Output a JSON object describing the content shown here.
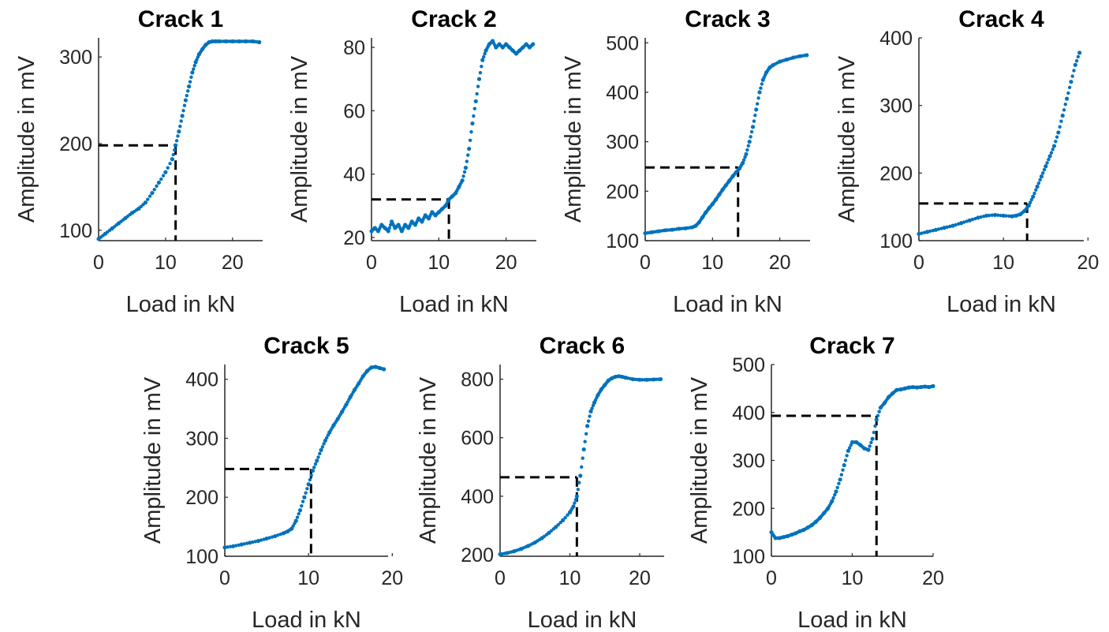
{
  "chart_data": [
    {
      "type": "scatter",
      "title": "Crack 1",
      "xlabel": "Load in kN",
      "ylabel": "Amplitude in mV",
      "xlim": [
        0,
        24.5
      ],
      "ylim": [
        88,
        322
      ],
      "xticks": [
        0,
        10,
        20
      ],
      "yticks": [
        100,
        200,
        300
      ],
      "grid": false,
      "marker_color": "#0072BD",
      "x": [
        0,
        1,
        2,
        3,
        4,
        5,
        6,
        7,
        8,
        9,
        10,
        11,
        11.5,
        12,
        12.5,
        13,
        13.5,
        14,
        14.5,
        15,
        15.5,
        16,
        16.5,
        17,
        17.5,
        18,
        19,
        20,
        21,
        22,
        23,
        24
      ],
      "y": [
        90,
        96,
        102,
        108,
        114,
        120,
        125,
        132,
        143,
        155,
        167,
        182,
        198,
        214,
        232,
        250,
        266,
        282,
        294,
        303,
        309,
        314,
        317,
        318,
        318,
        318,
        318,
        318,
        318,
        318,
        318,
        317
      ],
      "threshold": {
        "x": 11.5,
        "y": 198
      }
    },
    {
      "type": "scatter",
      "title": "Crack 2",
      "xlabel": "Load in kN",
      "ylabel": "Amplitude in mV",
      "xlim": [
        0,
        24.5
      ],
      "ylim": [
        19,
        83
      ],
      "xticks": [
        0,
        10,
        20
      ],
      "yticks": [
        20,
        40,
        60,
        80
      ],
      "grid": false,
      "marker_color": "#0072BD",
      "x": [
        0,
        0.5,
        1,
        1.5,
        2,
        2.5,
        3,
        3.5,
        4,
        4.5,
        5,
        5.5,
        6,
        6.5,
        7,
        7.5,
        8,
        8.5,
        9,
        9.5,
        10,
        10.5,
        11,
        11.5,
        12,
        12.5,
        13,
        13.5,
        14,
        14.5,
        15,
        15.5,
        16,
        16.5,
        17,
        17.5,
        18,
        18.5,
        19,
        19.5,
        20,
        20.5,
        21,
        21.5,
        22,
        22.5,
        23,
        23.5,
        24
      ],
      "y": [
        22,
        23,
        22,
        24,
        23,
        22,
        25,
        23,
        24,
        22,
        24,
        23,
        25,
        24,
        26,
        25,
        27,
        26,
        28,
        27,
        28,
        29,
        30,
        32,
        33,
        34,
        36,
        38,
        42,
        48,
        56,
        63,
        70,
        76,
        79,
        81,
        82,
        80,
        81,
        80,
        81,
        80,
        79,
        78,
        79,
        80,
        81,
        80,
        81
      ],
      "threshold": {
        "x": 11.5,
        "y": 32
      }
    },
    {
      "type": "scatter",
      "title": "Crack 3",
      "xlabel": "Load in kN",
      "ylabel": "Amplitude in mV",
      "xlim": [
        0,
        24.5
      ],
      "ylim": [
        100,
        510
      ],
      "xticks": [
        0,
        10,
        20
      ],
      "yticks": [
        100,
        200,
        300,
        400,
        500
      ],
      "grid": false,
      "marker_color": "#0072BD",
      "x": [
        0,
        1,
        2,
        3,
        4,
        5,
        6,
        7,
        7.5,
        8,
        8.5,
        9,
        9.5,
        10,
        10.5,
        11,
        11.5,
        12,
        12.5,
        13,
        13.5,
        14,
        14.5,
        15,
        15.5,
        16,
        16.5,
        17,
        17.5,
        18,
        18.5,
        19,
        20,
        21,
        22,
        23,
        24
      ],
      "y": [
        115,
        117,
        119,
        121,
        122,
        124,
        125,
        127,
        130,
        137,
        147,
        157,
        166,
        174,
        183,
        193,
        203,
        212,
        221,
        230,
        238,
        246,
        257,
        275,
        300,
        330,
        365,
        400,
        425,
        440,
        450,
        455,
        462,
        466,
        470,
        473,
        475
      ],
      "threshold": {
        "x": 13.8,
        "y": 248
      }
    },
    {
      "type": "scatter",
      "title": "Crack 4",
      "xlabel": "Load in kN",
      "ylabel": "Amplitude in mV",
      "xlim": [
        0,
        19.5
      ],
      "ylim": [
        100,
        400
      ],
      "xticks": [
        0,
        10,
        20
      ],
      "yticks": [
        100,
        200,
        300,
        400
      ],
      "grid": false,
      "marker_color": "#0072BD",
      "x": [
        0,
        1,
        2,
        3,
        4,
        5,
        6,
        7,
        8,
        9,
        10,
        11,
        11.5,
        12,
        12.5,
        13,
        13.5,
        14,
        14.5,
        15,
        15.5,
        16,
        16.5,
        17,
        17.5,
        18,
        18.5,
        19
      ],
      "y": [
        110,
        113,
        116,
        119,
        122,
        126,
        130,
        134,
        137,
        138,
        137,
        136,
        137,
        139,
        144,
        152,
        165,
        180,
        195,
        210,
        225,
        240,
        260,
        285,
        310,
        335,
        360,
        378
      ],
      "threshold": {
        "x": 12.8,
        "y": 155
      }
    },
    {
      "type": "scatter",
      "title": "Crack 5",
      "xlabel": "Load in kN",
      "ylabel": "Amplitude in mV",
      "xlim": [
        0,
        19.5
      ],
      "ylim": [
        100,
        425
      ],
      "xticks": [
        0,
        10,
        20
      ],
      "yticks": [
        100,
        200,
        300,
        400
      ],
      "grid": false,
      "marker_color": "#0072BD",
      "x": [
        0,
        1,
        2,
        3,
        4,
        5,
        6,
        7,
        7.5,
        8,
        8.5,
        9,
        9.5,
        10,
        10.5,
        11,
        11.5,
        12,
        12.5,
        13,
        13.5,
        14,
        14.5,
        15,
        15.5,
        16,
        16.5,
        17,
        17.5,
        18,
        18.5,
        19
      ],
      "y": [
        115,
        117,
        120,
        123,
        126,
        130,
        134,
        139,
        142,
        147,
        160,
        178,
        200,
        222,
        245,
        262,
        280,
        296,
        310,
        322,
        333,
        345,
        357,
        370,
        382,
        393,
        405,
        414,
        420,
        421,
        419,
        417
      ],
      "threshold": {
        "x": 10.3,
        "y": 248
      }
    },
    {
      "type": "scatter",
      "title": "Crack 6",
      "xlabel": "Load in kN",
      "ylabel": "Amplitude in mV",
      "xlim": [
        0,
        23.5
      ],
      "ylim": [
        195,
        850
      ],
      "xticks": [
        0,
        10,
        20
      ],
      "yticks": [
        200,
        400,
        600,
        800
      ],
      "grid": false,
      "marker_color": "#0072BD",
      "x": [
        0,
        1,
        2,
        3,
        4,
        5,
        6,
        7,
        8,
        9,
        10,
        10.5,
        11,
        11.5,
        12,
        12.5,
        13,
        13.5,
        14,
        14.5,
        15,
        15.5,
        16,
        16.5,
        17,
        17.5,
        18,
        19,
        20,
        21,
        22,
        23
      ],
      "y": [
        202,
        206,
        212,
        220,
        230,
        242,
        257,
        275,
        295,
        318,
        345,
        365,
        400,
        470,
        560,
        640,
        690,
        720,
        745,
        765,
        780,
        795,
        803,
        808,
        810,
        808,
        805,
        800,
        798,
        798,
        799,
        800
      ],
      "threshold": {
        "x": 11,
        "y": 465
      }
    },
    {
      "type": "scatter",
      "title": "Crack 7",
      "xlabel": "Load in kN",
      "ylabel": "Amplitude in mV",
      "xlim": [
        0,
        20
      ],
      "ylim": [
        100,
        500
      ],
      "xticks": [
        0,
        10,
        20
      ],
      "yticks": [
        100,
        200,
        300,
        400,
        500
      ],
      "grid": false,
      "marker_color": "#0072BD",
      "x": [
        0,
        0.5,
        1,
        1.5,
        2,
        2.5,
        3,
        3.5,
        4,
        4.5,
        5,
        5.5,
        6,
        6.5,
        7,
        7.5,
        8,
        8.5,
        9,
        9.5,
        10,
        10.5,
        11,
        11.5,
        12,
        12.5,
        13,
        13.5,
        14,
        14.5,
        15,
        15.5,
        16,
        16.5,
        17,
        17.5,
        18,
        18.5,
        19,
        19.5,
        20
      ],
      "y": [
        150,
        138,
        138,
        140,
        142,
        145,
        148,
        152,
        155,
        160,
        165,
        172,
        180,
        190,
        200,
        215,
        235,
        260,
        290,
        320,
        338,
        338,
        332,
        325,
        322,
        345,
        385,
        410,
        420,
        432,
        440,
        447,
        448,
        450,
        452,
        453,
        452,
        453,
        454,
        453,
        455
      ],
      "threshold": {
        "x": 13,
        "y": 393
      }
    }
  ]
}
